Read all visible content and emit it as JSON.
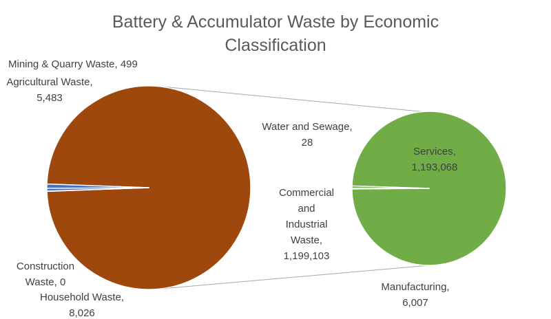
{
  "chart_data": {
    "type": "pie",
    "subtype": "pie-of-pie",
    "title": "Battery & Accumulator  Waste by Economic Classification",
    "title_lines": [
      "Battery & Accumulator  Waste by Economic",
      "Classification"
    ],
    "series": [
      {
        "name": "",
        "slices": [
          {
            "label": "Mining & Quarry Waste",
            "value": 499,
            "display": "499",
            "color": "#4472c4"
          },
          {
            "label": "Agricultural Waste",
            "value": 5483,
            "display": "5,483",
            "color": "#4472c4"
          },
          {
            "label": "Construction Waste",
            "value": 0,
            "display": "0",
            "color": "#4472c4"
          },
          {
            "label": "Household Waste",
            "value": 8026,
            "display": "8,026",
            "color": "#4472c4"
          },
          {
            "label": "Commercial and Industrial Waste",
            "value": 1199103,
            "display": "1,199,103",
            "color": "#9e480e"
          }
        ]
      },
      {
        "name": "",
        "slices": [
          {
            "label": "Water and Sewage",
            "value": 28,
            "display": "28",
            "color": "#70ad47"
          },
          {
            "label": "Services",
            "value": 1193068,
            "display": "1,193,068",
            "color": "#70ad47"
          },
          {
            "label": "Manufacturing",
            "value": 6007,
            "display": "6,007",
            "color": "#70ad47"
          }
        ]
      }
    ],
    "legend": "none",
    "data_labels": "outside"
  },
  "labels": {
    "mining": [
      "Mining & Quarry Waste, 499"
    ],
    "agricultural": [
      "Agricultural Waste,",
      "5,483"
    ],
    "construction": [
      "Construction",
      "Waste, 0"
    ],
    "household": [
      "Household Waste,",
      "8,026"
    ],
    "commercial": [
      "Commercial",
      "and",
      "Industrial",
      "Waste,",
      "1,199,103"
    ],
    "water": [
      "Water and Sewage,",
      "28"
    ],
    "services": [
      "Services,",
      "1,193,068"
    ],
    "manufacturing": [
      "Manufacturing,",
      "6,007"
    ]
  },
  "colors": {
    "primary_main": "#9e480e",
    "primary_small": "#4472c4",
    "secondary": "#70ad47",
    "connector": "#a6a6a6"
  }
}
